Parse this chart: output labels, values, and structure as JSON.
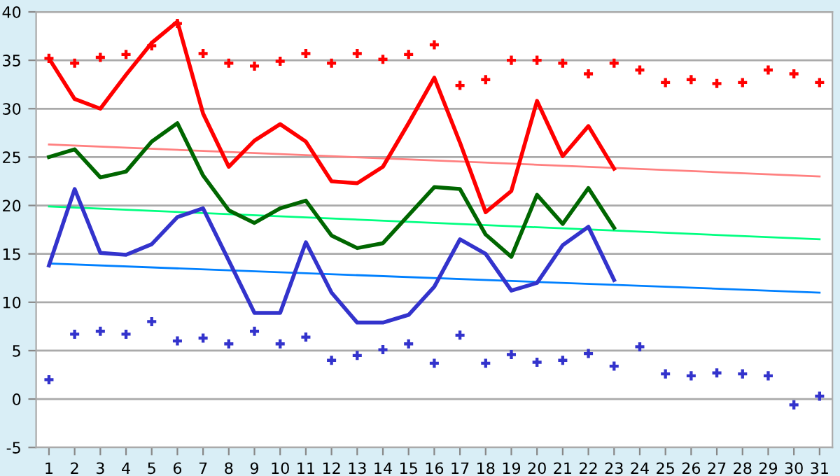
{
  "chart_data": {
    "type": "line",
    "x": [
      1,
      2,
      3,
      4,
      5,
      6,
      7,
      8,
      9,
      10,
      11,
      12,
      13,
      14,
      15,
      16,
      17,
      18,
      19,
      20,
      21,
      22,
      23,
      24,
      25,
      26,
      27,
      28,
      29,
      30,
      31
    ],
    "xlim": [
      0.5,
      31.5
    ],
    "xticks": [
      1,
      2,
      3,
      4,
      5,
      6,
      7,
      8,
      9,
      10,
      11,
      12,
      13,
      14,
      15,
      16,
      17,
      18,
      19,
      20,
      21,
      22,
      23,
      24,
      25,
      26,
      27,
      28,
      29,
      30,
      31
    ],
    "ylim": [
      -5,
      40
    ],
    "yticks": [
      -5,
      0,
      5,
      10,
      15,
      20,
      25,
      30,
      35,
      40
    ],
    "grid": "y",
    "legend": false,
    "series": [
      {
        "color": "#ff8080",
        "x": [
          1,
          31
        ],
        "values": [
          26.3,
          23.0
        ]
      },
      {
        "color": "#00ff80",
        "x": [
          1,
          31
        ],
        "values": [
          19.9,
          16.5
        ]
      },
      {
        "color": "#0080ff",
        "x": [
          1,
          31
        ],
        "values": [
          14.0,
          11.0
        ]
      },
      {
        "color": "#ff0000",
        "x": [
          1,
          2,
          3,
          4,
          5,
          6,
          7,
          8,
          9,
          10,
          11,
          12,
          13,
          14,
          15,
          16,
          17,
          18,
          19,
          20,
          21,
          22,
          23
        ],
        "values": [
          35.2,
          31,
          30,
          33.5,
          36.8,
          39,
          29.5,
          24,
          26.7,
          28.4,
          26.6,
          22.5,
          22.3,
          24,
          28.5,
          33.2,
          26.5,
          19.3,
          21.5,
          30.8,
          25.1,
          28.2,
          23.8
        ]
      },
      {
        "color": "#006600",
        "x": [
          1,
          2,
          3,
          4,
          5,
          6,
          7,
          8,
          9,
          10,
          11,
          12,
          13,
          14,
          15,
          16,
          17,
          18,
          19,
          20,
          21,
          22,
          23
        ],
        "values": [
          25,
          25.8,
          22.9,
          23.5,
          26.6,
          28.5,
          23.1,
          19.5,
          18.2,
          19.7,
          20.5,
          16.9,
          15.6,
          16.1,
          19,
          21.9,
          21.7,
          17,
          14.7,
          21.1,
          18.1,
          21.8,
          17.7
        ]
      },
      {
        "color": "#3333cc",
        "x": [
          1,
          2,
          3,
          4,
          5,
          6,
          7,
          8,
          9,
          10,
          11,
          12,
          13,
          14,
          15,
          16,
          17,
          18,
          19,
          20,
          21,
          22,
          23
        ],
        "values": [
          13.8,
          21.7,
          15.1,
          14.9,
          16,
          18.8,
          19.7,
          14.3,
          8.9,
          8.9,
          16.2,
          11,
          7.9,
          7.9,
          8.7,
          11.6,
          16.5,
          15,
          11.2,
          12,
          15.9,
          17.8,
          12.3
        ]
      },
      {
        "type": "scatter",
        "marker": "cross",
        "color": "#ff0000",
        "values": [
          35.2,
          34.7,
          35.3,
          35.6,
          36.5,
          38.8,
          35.7,
          34.7,
          34.4,
          34.9,
          35.7,
          34.7,
          35.7,
          35.1,
          35.6,
          36.6,
          32.4,
          33,
          35,
          35,
          34.7,
          33.6,
          34.7,
          34,
          32.7,
          33,
          32.6,
          32.7,
          34,
          33.6,
          32.7
        ]
      },
      {
        "type": "scatter",
        "marker": "cross",
        "color": "#3333cc",
        "values": [
          2,
          6.7,
          7,
          6.7,
          8,
          6,
          6.3,
          5.7,
          7,
          5.7,
          6.4,
          4,
          4.5,
          5.1,
          5.7,
          3.7,
          6.6,
          3.7,
          4.6,
          3.8,
          4,
          4.7,
          3.4,
          5.4,
          2.6,
          2.4,
          2.7,
          2.6,
          2.4,
          -0.6,
          0.3
        ]
      }
    ]
  }
}
